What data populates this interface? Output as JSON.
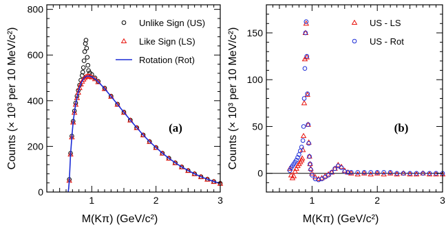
{
  "chart_data": [
    {
      "type": "scatter",
      "panel_label": "(a)",
      "xlabel": "M(Kπ) (GeV/c²)",
      "ylabel": "Counts (× 10³ per 10 MeV/c²)",
      "xlim": [
        0.3,
        3.0
      ],
      "ylim": [
        0,
        820
      ],
      "xticks": [
        1,
        2,
        3
      ],
      "yticks": [
        0,
        200,
        400,
        600,
        800
      ],
      "legend_position": "top-right",
      "series": [
        {
          "name": "Unlike Sign (US)",
          "marker": "circle-open",
          "color": "#000000",
          "points": [
            [
              0.65,
              55
            ],
            [
              0.67,
              170
            ],
            [
              0.69,
              245
            ],
            [
              0.71,
              310
            ],
            [
              0.73,
              355
            ],
            [
              0.75,
              390
            ],
            [
              0.77,
              420
            ],
            [
              0.79,
              445
            ],
            [
              0.81,
              468
            ],
            [
              0.83,
              490
            ],
            [
              0.85,
              510
            ],
            [
              0.86,
              525
            ],
            [
              0.87,
              545
            ],
            [
              0.88,
              575
            ],
            [
              0.89,
              615
            ],
            [
              0.9,
              650
            ],
            [
              0.91,
              665
            ],
            [
              0.92,
              630
            ],
            [
              0.93,
              590
            ],
            [
              0.94,
              555
            ],
            [
              0.95,
              532
            ],
            [
              0.97,
              522
            ],
            [
              1.0,
              515
            ],
            [
              1.05,
              500
            ],
            [
              1.1,
              485
            ],
            [
              1.2,
              455
            ],
            [
              1.3,
              420
            ],
            [
              1.4,
              385
            ],
            [
              1.5,
              350
            ],
            [
              1.6,
              315
            ],
            [
              1.7,
              282
            ],
            [
              1.8,
              250
            ],
            [
              1.9,
              221
            ],
            [
              2.0,
              195
            ],
            [
              2.1,
              170
            ],
            [
              2.2,
              148
            ],
            [
              2.3,
              128
            ],
            [
              2.4,
              110
            ],
            [
              2.5,
              94
            ],
            [
              2.6,
              80
            ],
            [
              2.7,
              67
            ],
            [
              2.8,
              56
            ],
            [
              2.9,
              46
            ],
            [
              3.0,
              38
            ]
          ]
        },
        {
          "name": "Like Sign (LS)",
          "marker": "triangle-open",
          "color": "#e8120c",
          "points": [
            [
              0.65,
              50
            ],
            [
              0.67,
              165
            ],
            [
              0.69,
              240
            ],
            [
              0.71,
              305
            ],
            [
              0.73,
              348
            ],
            [
              0.75,
              383
            ],
            [
              0.77,
              412
            ],
            [
              0.79,
              436
            ],
            [
              0.81,
              456
            ],
            [
              0.83,
              472
            ],
            [
              0.85,
              484
            ],
            [
              0.87,
              493
            ],
            [
              0.89,
              500
            ],
            [
              0.91,
              505
            ],
            [
              0.93,
              507
            ],
            [
              0.95,
              507
            ],
            [
              0.97,
              506
            ],
            [
              1.0,
              503
            ],
            [
              1.05,
              495
            ],
            [
              1.1,
              482
            ],
            [
              1.2,
              452
            ],
            [
              1.3,
              418
            ],
            [
              1.4,
              383
            ],
            [
              1.5,
              348
            ],
            [
              1.6,
              314
            ],
            [
              1.7,
              281
            ],
            [
              1.8,
              249
            ],
            [
              1.9,
              220
            ],
            [
              2.0,
              194
            ],
            [
              2.1,
              169
            ],
            [
              2.2,
              147
            ],
            [
              2.3,
              127
            ],
            [
              2.4,
              109
            ],
            [
              2.5,
              93
            ],
            [
              2.6,
              79
            ],
            [
              2.7,
              66
            ],
            [
              2.8,
              55
            ],
            [
              2.9,
              45
            ],
            [
              3.0,
              37
            ]
          ]
        },
        {
          "name": "Rotation (Rot)",
          "marker": "line",
          "color": "#1a2ad6",
          "points": [
            [
              0.632,
              0
            ],
            [
              0.64,
              15
            ],
            [
              0.65,
              48
            ],
            [
              0.67,
              165
            ],
            [
              0.69,
              242
            ],
            [
              0.71,
              306
            ],
            [
              0.73,
              350
            ],
            [
              0.75,
              385
            ],
            [
              0.77,
              414
            ],
            [
              0.79,
              438
            ],
            [
              0.81,
              458
            ],
            [
              0.83,
              474
            ],
            [
              0.85,
              486
            ],
            [
              0.87,
              495
            ],
            [
              0.89,
              502
            ],
            [
              0.91,
              506
            ],
            [
              0.93,
              508
            ],
            [
              0.95,
              508
            ],
            [
              0.97,
              507
            ],
            [
              1.0,
              504
            ],
            [
              1.05,
              496
            ],
            [
              1.1,
              483
            ],
            [
              1.2,
              453
            ],
            [
              1.3,
              419
            ],
            [
              1.4,
              384
            ],
            [
              1.5,
              349
            ],
            [
              1.6,
              315
            ],
            [
              1.7,
              282
            ],
            [
              1.8,
              250
            ],
            [
              1.9,
              221
            ],
            [
              2.0,
              195
            ],
            [
              2.1,
              170
            ],
            [
              2.2,
              148
            ],
            [
              2.3,
              128
            ],
            [
              2.4,
              110
            ],
            [
              2.5,
              94
            ],
            [
              2.6,
              80
            ],
            [
              2.7,
              67
            ],
            [
              2.8,
              56
            ],
            [
              2.9,
              46
            ],
            [
              3.0,
              38
            ]
          ]
        }
      ]
    },
    {
      "type": "scatter",
      "panel_label": "(b)",
      "xlabel": "M(Kπ) (GeV/c²)",
      "ylabel": "Counts (× 10³ per 10 MeV/c²)",
      "xlim": [
        0.3,
        3.0
      ],
      "ylim": [
        -20,
        180
      ],
      "xticks": [
        1,
        2,
        3
      ],
      "yticks": [
        0,
        50,
        100,
        150
      ],
      "zero_line": true,
      "legend_position": "top-right",
      "series": [
        {
          "name": "US - LS",
          "marker": "triangle-open",
          "color": "#e8120c",
          "points": [
            [
              0.66,
              5
            ],
            [
              0.68,
              -2
            ],
            [
              0.7,
              -5
            ],
            [
              0.72,
              -3
            ],
            [
              0.74,
              2
            ],
            [
              0.76,
              5
            ],
            [
              0.78,
              8
            ],
            [
              0.8,
              10
            ],
            [
              0.82,
              12
            ],
            [
              0.84,
              14
            ],
            [
              0.85,
              16
            ],
            [
              0.86,
              25
            ],
            [
              0.87,
              40
            ],
            [
              0.88,
              75
            ],
            [
              0.89,
              122
            ],
            [
              0.9,
              150
            ],
            [
              0.91,
              160
            ],
            [
              0.92,
              124
            ],
            [
              0.93,
              84
            ],
            [
              0.94,
              52
            ],
            [
              0.95,
              33
            ],
            [
              0.96,
              18
            ],
            [
              0.97,
              10
            ],
            [
              0.98,
              5
            ],
            [
              1.0,
              0
            ],
            [
              1.05,
              -4
            ],
            [
              1.1,
              -6
            ],
            [
              1.15,
              -5
            ],
            [
              1.2,
              -3
            ],
            [
              1.25,
              -1
            ],
            [
              1.3,
              1
            ],
            [
              1.35,
              5
            ],
            [
              1.4,
              9
            ],
            [
              1.45,
              7
            ],
            [
              1.5,
              3
            ],
            [
              1.55,
              1
            ],
            [
              1.6,
              0
            ],
            [
              1.7,
              -1
            ],
            [
              1.8,
              0
            ],
            [
              1.9,
              -1
            ],
            [
              2.0,
              0
            ],
            [
              2.1,
              -1
            ],
            [
              2.2,
              0
            ],
            [
              2.3,
              -1
            ],
            [
              2.4,
              0
            ],
            [
              2.5,
              -1
            ],
            [
              2.6,
              -1
            ],
            [
              2.7,
              0
            ],
            [
              2.8,
              -1
            ],
            [
              2.9,
              -1
            ],
            [
              3.0,
              -1
            ]
          ]
        },
        {
          "name": "US - Rot",
          "marker": "circle-open",
          "color": "#1a2ad6",
          "points": [
            [
              0.66,
              3
            ],
            [
              0.68,
              6
            ],
            [
              0.7,
              8
            ],
            [
              0.72,
              10
            ],
            [
              0.74,
              12
            ],
            [
              0.76,
              14
            ],
            [
              0.78,
              17
            ],
            [
              0.8,
              20
            ],
            [
              0.82,
              24
            ],
            [
              0.84,
              28
            ],
            [
              0.86,
              35
            ],
            [
              0.87,
              50
            ],
            [
              0.88,
              80
            ],
            [
              0.89,
              112
            ],
            [
              0.9,
              150
            ],
            [
              0.91,
              162
            ],
            [
              0.92,
              125
            ],
            [
              0.93,
              85
            ],
            [
              0.94,
              52
            ],
            [
              0.95,
              32
            ],
            [
              0.96,
              18
            ],
            [
              0.97,
              10
            ],
            [
              0.98,
              4
            ],
            [
              1.0,
              -2
            ],
            [
              1.05,
              -6
            ],
            [
              1.1,
              -7
            ],
            [
              1.15,
              -6
            ],
            [
              1.2,
              -4
            ],
            [
              1.25,
              -2
            ],
            [
              1.3,
              1
            ],
            [
              1.35,
              5
            ],
            [
              1.4,
              8
            ],
            [
              1.45,
              6
            ],
            [
              1.5,
              2
            ],
            [
              1.55,
              1
            ],
            [
              1.6,
              1
            ],
            [
              1.7,
              1
            ],
            [
              1.8,
              1
            ],
            [
              1.9,
              1
            ],
            [
              2.0,
              1
            ],
            [
              2.1,
              1
            ],
            [
              2.2,
              1
            ],
            [
              2.3,
              0
            ],
            [
              2.4,
              0
            ],
            [
              2.5,
              0
            ],
            [
              2.6,
              0
            ],
            [
              2.7,
              0
            ],
            [
              2.8,
              0
            ],
            [
              2.9,
              0
            ],
            [
              3.0,
              0
            ]
          ]
        }
      ]
    }
  ]
}
